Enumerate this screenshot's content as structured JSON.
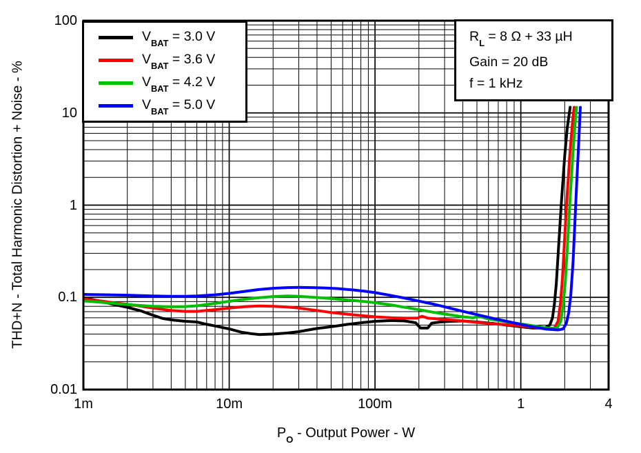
{
  "page": {
    "background": "#ffffff"
  },
  "chart_data": {
    "type": "line",
    "x_scale": "log",
    "y_scale": "log",
    "xlim": [
      0.001,
      4
    ],
    "ylim": [
      0.01,
      100
    ],
    "grid": "log major+minor, black, both axes",
    "legend_position": "top-left",
    "ylabel": "THD+N - Total Harmonic Distortion + Noise - %",
    "xlabel_parts": [
      {
        "t": "P"
      },
      {
        "sub": "O"
      },
      {
        "t": " - Output Power - W"
      }
    ],
    "x_ticks": [
      {
        "value": 0.001,
        "label": "1m"
      },
      {
        "value": 0.01,
        "label": "10m"
      },
      {
        "value": 0.1,
        "label": "100m"
      },
      {
        "value": 1,
        "label": "1"
      },
      {
        "value": 4,
        "label": "4"
      }
    ],
    "y_ticks": [
      {
        "value": 100,
        "label": "100"
      },
      {
        "value": 10,
        "label": "10"
      },
      {
        "value": 1,
        "label": "1"
      },
      {
        "value": 0.1,
        "label": "0.1"
      },
      {
        "value": 0.01,
        "label": "0.01"
      }
    ],
    "annotation_lines": [
      [
        {
          "t": "R"
        },
        {
          "sub": "L"
        },
        {
          "t": " = 8 Ω + 33 µH"
        }
      ],
      [
        {
          "t": "Gain = 20 dB"
        }
      ],
      [
        {
          "t": "f = 1 kHz"
        }
      ]
    ],
    "series": [
      {
        "name": "VBAT = 3.0 V",
        "name_parts": [
          {
            "t": "V"
          },
          {
            "sub": "BAT"
          },
          {
            "t": " = 3.0 V"
          }
        ],
        "color": "#000000",
        "points": [
          [
            0.001,
            0.099
          ],
          [
            0.0013,
            0.091
          ],
          [
            0.0016,
            0.084
          ],
          [
            0.002,
            0.078
          ],
          [
            0.0025,
            0.071
          ],
          [
            0.003,
            0.064
          ],
          [
            0.0035,
            0.059
          ],
          [
            0.004,
            0.057
          ],
          [
            0.005,
            0.055
          ],
          [
            0.006,
            0.054
          ],
          [
            0.007,
            0.051
          ],
          [
            0.008,
            0.049
          ],
          [
            0.009,
            0.047
          ],
          [
            0.01,
            0.0455
          ],
          [
            0.012,
            0.042
          ],
          [
            0.014,
            0.0405
          ],
          [
            0.016,
            0.0395
          ],
          [
            0.02,
            0.04
          ],
          [
            0.025,
            0.041
          ],
          [
            0.03,
            0.0425
          ],
          [
            0.04,
            0.046
          ],
          [
            0.05,
            0.048
          ],
          [
            0.065,
            0.051
          ],
          [
            0.08,
            0.053
          ],
          [
            0.1,
            0.055
          ],
          [
            0.13,
            0.056
          ],
          [
            0.16,
            0.0555
          ],
          [
            0.19,
            0.053
          ],
          [
            0.205,
            0.0465
          ],
          [
            0.23,
            0.0465
          ],
          [
            0.245,
            0.0525
          ],
          [
            0.28,
            0.054
          ],
          [
            0.33,
            0.055
          ],
          [
            0.4,
            0.0555
          ],
          [
            0.5,
            0.054
          ],
          [
            0.65,
            0.052
          ],
          [
            0.8,
            0.05
          ],
          [
            1.0,
            0.048
          ],
          [
            1.2,
            0.0465
          ],
          [
            1.45,
            0.0465
          ],
          [
            1.58,
            0.05
          ],
          [
            1.65,
            0.06
          ],
          [
            1.7,
            0.085
          ],
          [
            1.75,
            0.14
          ],
          [
            1.82,
            0.38
          ],
          [
            1.9,
            1.1
          ],
          [
            2.0,
            3.4
          ],
          [
            2.08,
            6.8
          ],
          [
            2.18,
            11.5
          ]
        ]
      },
      {
        "name": "VBAT = 3.6 V",
        "name_parts": [
          {
            "t": "V"
          },
          {
            "sub": "BAT"
          },
          {
            "t": " = 3.6 V"
          }
        ],
        "color": "#FF0000",
        "points": [
          [
            0.001,
            0.096
          ],
          [
            0.0013,
            0.0915
          ],
          [
            0.0016,
            0.0875
          ],
          [
            0.002,
            0.084
          ],
          [
            0.0025,
            0.08
          ],
          [
            0.003,
            0.0765
          ],
          [
            0.004,
            0.072
          ],
          [
            0.005,
            0.0705
          ],
          [
            0.006,
            0.0705
          ],
          [
            0.007,
            0.072
          ],
          [
            0.008,
            0.0735
          ],
          [
            0.01,
            0.0765
          ],
          [
            0.013,
            0.0795
          ],
          [
            0.016,
            0.0805
          ],
          [
            0.02,
            0.08
          ],
          [
            0.025,
            0.0785
          ],
          [
            0.03,
            0.0765
          ],
          [
            0.04,
            0.072
          ],
          [
            0.05,
            0.0685
          ],
          [
            0.065,
            0.0655
          ],
          [
            0.08,
            0.0635
          ],
          [
            0.1,
            0.0615
          ],
          [
            0.13,
            0.06
          ],
          [
            0.16,
            0.0595
          ],
          [
            0.195,
            0.0595
          ],
          [
            0.21,
            0.0625
          ],
          [
            0.23,
            0.0595
          ],
          [
            0.3,
            0.0575
          ],
          [
            0.4,
            0.0555
          ],
          [
            0.5,
            0.0535
          ],
          [
            0.65,
            0.0515
          ],
          [
            0.8,
            0.0505
          ],
          [
            1.0,
            0.049
          ],
          [
            1.3,
            0.047
          ],
          [
            1.55,
            0.046
          ],
          [
            1.7,
            0.0465
          ],
          [
            1.8,
            0.055
          ],
          [
            1.87,
            0.085
          ],
          [
            1.93,
            0.16
          ],
          [
            2.0,
            0.45
          ],
          [
            2.08,
            1.3
          ],
          [
            2.17,
            3.6
          ],
          [
            2.27,
            8.5
          ],
          [
            2.32,
            11.5
          ]
        ]
      },
      {
        "name": "VBAT = 4.2 V",
        "name_parts": [
          {
            "t": "V"
          },
          {
            "sub": "BAT"
          },
          {
            "t": " = 4.2 V"
          }
        ],
        "color": "#00BF00",
        "points": [
          [
            0.001,
            0.0915
          ],
          [
            0.0013,
            0.0885
          ],
          [
            0.0016,
            0.086
          ],
          [
            0.002,
            0.0835
          ],
          [
            0.0025,
            0.0815
          ],
          [
            0.003,
            0.08
          ],
          [
            0.004,
            0.079
          ],
          [
            0.005,
            0.0795
          ],
          [
            0.006,
            0.081
          ],
          [
            0.008,
            0.086
          ],
          [
            0.01,
            0.0905
          ],
          [
            0.013,
            0.0955
          ],
          [
            0.016,
            0.099
          ],
          [
            0.02,
            0.102
          ],
          [
            0.025,
            0.1035
          ],
          [
            0.03,
            0.1025
          ],
          [
            0.04,
            0.0995
          ],
          [
            0.05,
            0.097
          ],
          [
            0.065,
            0.0935
          ],
          [
            0.08,
            0.091
          ],
          [
            0.1,
            0.0875
          ],
          [
            0.13,
            0.0825
          ],
          [
            0.16,
            0.078
          ],
          [
            0.2,
            0.0735
          ],
          [
            0.25,
            0.069
          ],
          [
            0.3,
            0.066
          ],
          [
            0.4,
            0.0615
          ],
          [
            0.47,
            0.06
          ],
          [
            0.52,
            0.0625
          ],
          [
            0.58,
            0.059
          ],
          [
            0.7,
            0.056
          ],
          [
            0.85,
            0.0535
          ],
          [
            1.0,
            0.0515
          ],
          [
            1.3,
            0.0485
          ],
          [
            1.6,
            0.046
          ],
          [
            1.78,
            0.0465
          ],
          [
            1.88,
            0.055
          ],
          [
            1.95,
            0.08
          ],
          [
            2.02,
            0.15
          ],
          [
            2.1,
            0.42
          ],
          [
            2.18,
            1.2
          ],
          [
            2.27,
            3.4
          ],
          [
            2.36,
            8.0
          ],
          [
            2.41,
            11.5
          ]
        ]
      },
      {
        "name": "VBAT = 5.0 V",
        "name_parts": [
          {
            "t": "V"
          },
          {
            "sub": "BAT"
          },
          {
            "t": " = 5.0 V"
          }
        ],
        "color": "#0000FF",
        "points": [
          [
            0.001,
            0.1075
          ],
          [
            0.0015,
            0.1065
          ],
          [
            0.002,
            0.1055
          ],
          [
            0.003,
            0.1035
          ],
          [
            0.004,
            0.1025
          ],
          [
            0.005,
            0.1025
          ],
          [
            0.006,
            0.1035
          ],
          [
            0.008,
            0.1065
          ],
          [
            0.01,
            0.1105
          ],
          [
            0.013,
            0.1165
          ],
          [
            0.016,
            0.1215
          ],
          [
            0.02,
            0.1255
          ],
          [
            0.025,
            0.1275
          ],
          [
            0.03,
            0.1285
          ],
          [
            0.037,
            0.1275
          ],
          [
            0.045,
            0.1265
          ],
          [
            0.055,
            0.1245
          ],
          [
            0.07,
            0.1205
          ],
          [
            0.085,
            0.1165
          ],
          [
            0.1,
            0.1125
          ],
          [
            0.13,
            0.1045
          ],
          [
            0.16,
            0.098
          ],
          [
            0.2,
            0.091
          ],
          [
            0.25,
            0.0845
          ],
          [
            0.3,
            0.079
          ],
          [
            0.4,
            0.0705
          ],
          [
            0.5,
            0.065
          ],
          [
            0.65,
            0.059
          ],
          [
            0.8,
            0.055
          ],
          [
            1.0,
            0.051
          ],
          [
            1.2,
            0.048
          ],
          [
            1.5,
            0.0452
          ],
          [
            1.8,
            0.0443
          ],
          [
            1.95,
            0.0455
          ],
          [
            2.05,
            0.052
          ],
          [
            2.13,
            0.068
          ],
          [
            2.2,
            0.105
          ],
          [
            2.28,
            0.24
          ],
          [
            2.35,
            0.65
          ],
          [
            2.42,
            1.8
          ],
          [
            2.5,
            5.0
          ],
          [
            2.56,
            11.5
          ]
        ]
      }
    ]
  }
}
